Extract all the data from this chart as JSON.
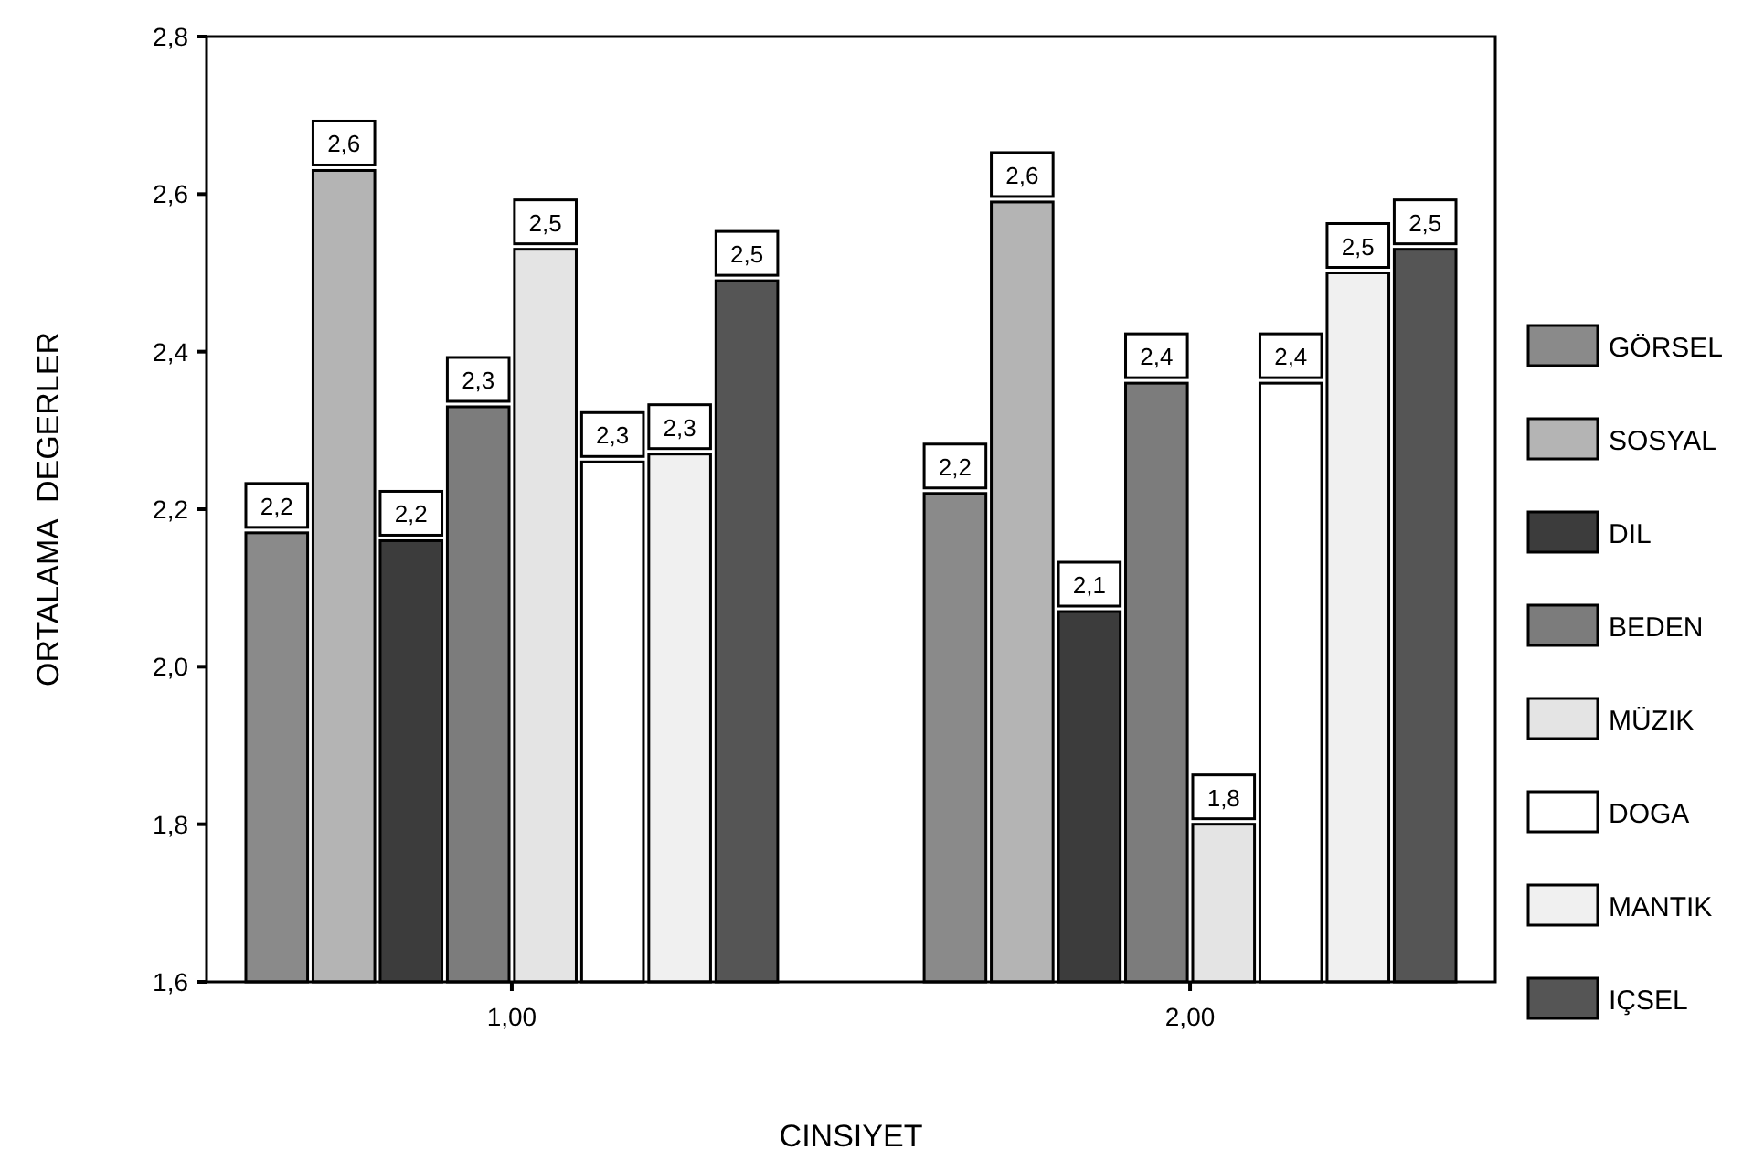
{
  "chart_data": {
    "type": "bar",
    "xlabel": "CINSIYET",
    "ylabel": "ORTALAMA  DEGERLER",
    "categories": [
      "1,00",
      "2,00"
    ],
    "series": [
      {
        "name": "GÖRSEL",
        "color": "#8a8a8a",
        "values": [
          2.17,
          2.22
        ],
        "value_labels": [
          "2,2",
          "2,2"
        ]
      },
      {
        "name": "SOSYAL",
        "color": "#b4b4b4",
        "values": [
          2.63,
          2.59
        ],
        "value_labels": [
          "2,6",
          "2,6"
        ]
      },
      {
        "name": "DIL",
        "color": "#3c3c3c",
        "values": [
          2.16,
          2.07
        ],
        "value_labels": [
          "2,2",
          "2,1"
        ]
      },
      {
        "name": "BEDEN",
        "color": "#7c7c7c",
        "values": [
          2.33,
          2.36
        ],
        "value_labels": [
          "2,3",
          "2,4"
        ]
      },
      {
        "name": "MÜZIK",
        "color": "#e4e4e4",
        "values": [
          2.53,
          1.8
        ],
        "value_labels": [
          "2,5",
          "1,8"
        ]
      },
      {
        "name": "DOGA",
        "color": "#ffffff",
        "values": [
          2.26,
          2.36
        ],
        "value_labels": [
          "2,3",
          "2,4"
        ]
      },
      {
        "name": "MANTIK",
        "color": "#f0f0f0",
        "values": [
          2.27,
          2.5
        ],
        "value_labels": [
          "2,3",
          "2,5"
        ]
      },
      {
        "name": "IÇSEL",
        "color": "#555555",
        "values": [
          2.49,
          2.53
        ],
        "value_labels": [
          "2,5",
          "2,5"
        ]
      }
    ],
    "ylim": [
      1.6,
      2.8
    ],
    "yticks": [
      {
        "value": 1.6,
        "label": "1,6"
      },
      {
        "value": 1.8,
        "label": "1,8"
      },
      {
        "value": 2.0,
        "label": "2,0"
      },
      {
        "value": 2.2,
        "label": "2,2"
      },
      {
        "value": 2.4,
        "label": "2,4"
      },
      {
        "value": 2.6,
        "label": "2,6"
      },
      {
        "value": 2.8,
        "label": "2,8"
      }
    ],
    "legend": "right",
    "grid": false
  }
}
